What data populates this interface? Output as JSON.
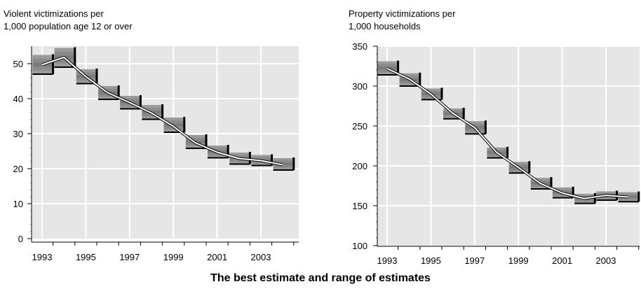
{
  "caption": "The best estimate and range of estimates",
  "chart_data": [
    {
      "type": "line",
      "title_lines": [
        "Violent victimizations per",
        "1,000 population age 12 or over"
      ],
      "x": [
        1993,
        1994,
        1995,
        1996,
        1997,
        1998,
        1999,
        2000,
        2001,
        2002,
        2003,
        2004
      ],
      "x_tick_labels": [
        "1993",
        "1995",
        "1997",
        "1999",
        "2001",
        "2003"
      ],
      "ylim": [
        0,
        55
      ],
      "y_ticks": [
        0,
        10,
        20,
        30,
        40,
        50
      ],
      "grid": true,
      "series": [
        {
          "values": [
            49.7,
            51.8,
            46.3,
            41.7,
            38.9,
            35.9,
            32.1,
            27.4,
            24.7,
            22.9,
            22.3,
            21.1
          ]
        }
      ],
      "range_low": [
        47.0,
        49.0,
        44.3,
        39.8,
        37.1,
        34.1,
        30.4,
        25.8,
        23.1,
        21.3,
        20.9,
        19.6
      ],
      "range_high": [
        52.5,
        54.5,
        48.4,
        43.6,
        40.8,
        38.2,
        34.6,
        29.6,
        26.6,
        24.6,
        23.9,
        23.0
      ]
    },
    {
      "type": "line",
      "title_lines": [
        "Property victimizations per",
        "1,000 households"
      ],
      "x": [
        1993,
        1994,
        1995,
        1996,
        1997,
        1998,
        1999,
        2000,
        2001,
        2002,
        2003,
        2004
      ],
      "x_tick_labels": [
        "1993",
        "1995",
        "1997",
        "1999",
        "2001",
        "2003"
      ],
      "ylim": [
        100,
        350
      ],
      "y_ticks": [
        100,
        150,
        200,
        250,
        300,
        350
      ],
      "grid": true,
      "series": [
        {
          "values": [
            322,
            309,
            290,
            266,
            248,
            217,
            198,
            178,
            166,
            159,
            163,
            161
          ]
        }
      ],
      "range_low": [
        314,
        300,
        283,
        259,
        240,
        210,
        191,
        171,
        160,
        153,
        157,
        155
      ],
      "range_high": [
        331,
        316,
        297,
        272,
        256,
        223,
        205,
        185,
        173,
        165,
        168,
        167
      ]
    }
  ]
}
